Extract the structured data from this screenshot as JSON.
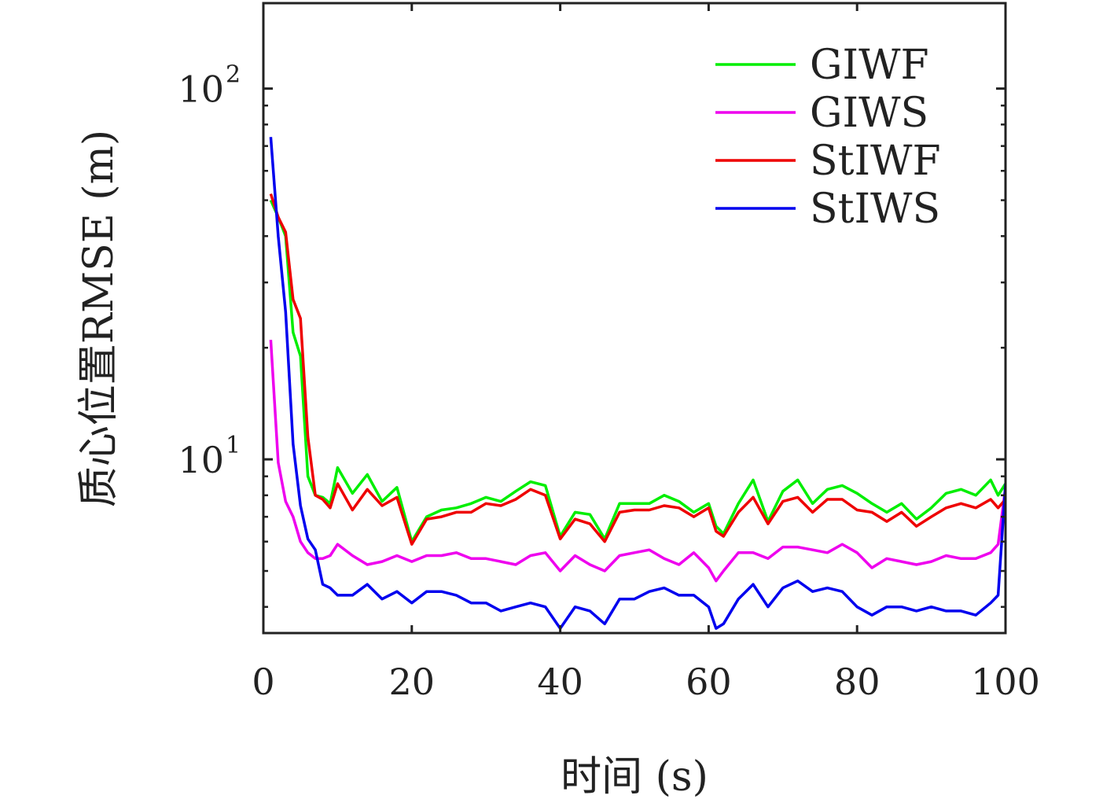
{
  "chart_data": {
    "type": "line",
    "xlabel": "时间 (s)",
    "ylabel": "质心位置RMSE (m)",
    "yscale": "log",
    "xlim": [
      0,
      100
    ],
    "ylim": [
      3.4,
      170
    ],
    "grid": false,
    "legend_position": "top-right",
    "x_ticks": [
      0,
      20,
      40,
      60,
      80,
      100
    ],
    "x_tick_labels": [
      "0",
      "20",
      "40",
      "60",
      "80",
      "100"
    ],
    "y_ticks": [
      {
        "value": 10,
        "base": "10",
        "exponent": "1"
      },
      {
        "value": 100,
        "base": "10",
        "exponent": "2"
      }
    ],
    "x": [
      1,
      2,
      3,
      4,
      5,
      6,
      7,
      8,
      9,
      10,
      12,
      14,
      16,
      18,
      20,
      22,
      24,
      26,
      28,
      30,
      32,
      34,
      36,
      38,
      40,
      42,
      44,
      46,
      48,
      50,
      52,
      54,
      56,
      58,
      60,
      61,
      62,
      64,
      66,
      68,
      70,
      72,
      74,
      76,
      78,
      80,
      82,
      84,
      86,
      88,
      90,
      92,
      94,
      96,
      98,
      99,
      100
    ],
    "series": [
      {
        "name": "GIWF",
        "color": "#00ee00",
        "values": [
          50,
          45,
          40,
          22,
          19,
          9.0,
          8.0,
          7.9,
          7.6,
          9.5,
          8.1,
          9.1,
          7.7,
          8.4,
          6.0,
          7.0,
          7.3,
          7.4,
          7.6,
          7.9,
          7.7,
          8.2,
          8.7,
          8.5,
          6.2,
          7.2,
          7.1,
          6.1,
          7.6,
          7.6,
          7.6,
          8.0,
          7.7,
          7.2,
          7.6,
          6.6,
          6.3,
          7.6,
          8.8,
          6.8,
          8.2,
          8.8,
          7.6,
          8.3,
          8.5,
          8.1,
          7.6,
          7.2,
          7.6,
          6.9,
          7.4,
          8.1,
          8.3,
          8.0,
          8.8,
          8.0,
          8.6
        ]
      },
      {
        "name": "GIWS",
        "color": "#ee00ee",
        "values": [
          21,
          9.8,
          7.7,
          7.0,
          6.0,
          5.6,
          5.4,
          5.4,
          5.5,
          5.9,
          5.5,
          5.2,
          5.3,
          5.5,
          5.3,
          5.5,
          5.5,
          5.6,
          5.4,
          5.4,
          5.3,
          5.2,
          5.5,
          5.6,
          5.0,
          5.5,
          5.2,
          5.0,
          5.5,
          5.6,
          5.7,
          5.4,
          5.2,
          5.6,
          5.1,
          4.7,
          5.0,
          5.6,
          5.6,
          5.4,
          5.8,
          5.8,
          5.7,
          5.6,
          5.9,
          5.6,
          5.1,
          5.4,
          5.3,
          5.2,
          5.3,
          5.5,
          5.4,
          5.4,
          5.6,
          5.9,
          8.4
        ]
      },
      {
        "name": "StIWF",
        "color": "#ee0000",
        "values": [
          52,
          45,
          41,
          27,
          24,
          11.5,
          8.0,
          7.8,
          7.4,
          8.6,
          7.3,
          8.3,
          7.5,
          7.9,
          5.9,
          6.9,
          7.0,
          7.2,
          7.2,
          7.6,
          7.5,
          7.8,
          8.3,
          8.0,
          6.1,
          6.9,
          6.7,
          6.0,
          7.2,
          7.3,
          7.3,
          7.5,
          7.4,
          7.0,
          7.4,
          6.4,
          6.2,
          7.2,
          7.9,
          6.7,
          7.7,
          7.9,
          7.2,
          7.8,
          7.8,
          7.3,
          7.2,
          6.8,
          7.2,
          6.6,
          7.0,
          7.4,
          7.6,
          7.4,
          7.8,
          7.4,
          7.8
        ]
      },
      {
        "name": "StIWS",
        "color": "#0000ee",
        "values": [
          74,
          40,
          25,
          11,
          7.5,
          6.1,
          5.7,
          4.6,
          4.5,
          4.3,
          4.3,
          4.6,
          4.2,
          4.4,
          4.1,
          4.4,
          4.4,
          4.3,
          4.1,
          4.1,
          3.9,
          4.0,
          4.1,
          4.0,
          3.5,
          4.0,
          3.9,
          3.6,
          4.2,
          4.2,
          4.4,
          4.5,
          4.3,
          4.3,
          4.0,
          3.5,
          3.6,
          4.2,
          4.6,
          4.0,
          4.5,
          4.7,
          4.4,
          4.5,
          4.4,
          4.0,
          3.8,
          4.0,
          4.0,
          3.9,
          4.0,
          3.9,
          3.9,
          3.8,
          4.1,
          4.3,
          8.6
        ]
      }
    ]
  }
}
